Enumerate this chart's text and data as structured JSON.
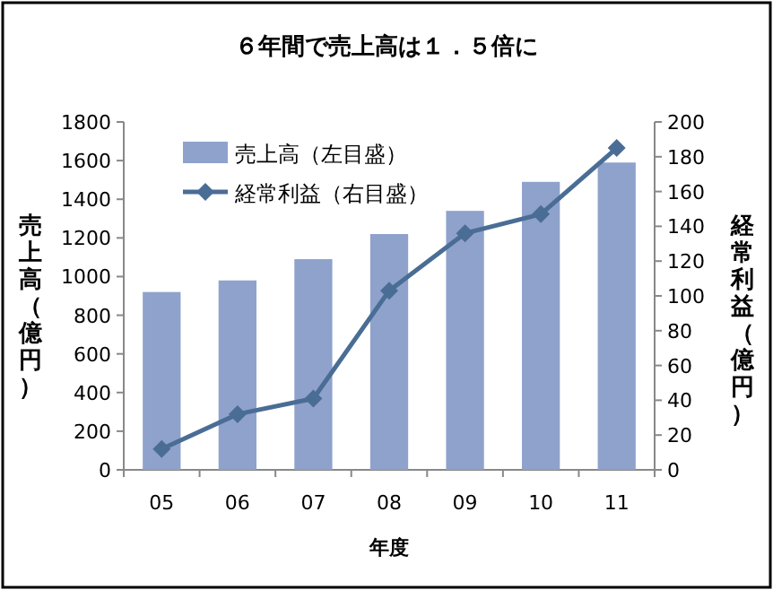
{
  "chart_data": {
    "type": "bar",
    "title": "６年間で売上高は１．５倍に",
    "xlabel": "年度",
    "ylabel": "売上高（億円）",
    "y2label": "経常利益（億円）",
    "categories": [
      "05",
      "06",
      "07",
      "08",
      "09",
      "10",
      "11"
    ],
    "series": [
      {
        "name": "売上高（左目盛）",
        "color": "#8ea2cc",
        "values": [
          920,
          980,
          1090,
          1220,
          1340,
          1490,
          1590
        ]
      },
      {
        "name": "経常利益（右目盛）",
        "type": "line",
        "axis": "y2",
        "color": "#4a6d95",
        "marker": "diamond",
        "values": [
          12,
          32,
          41,
          103,
          136,
          147,
          185
        ]
      }
    ],
    "ylim": [
      0,
      1800
    ],
    "yticks": [
      0,
      200,
      400,
      600,
      800,
      1000,
      1200,
      1400,
      1600,
      1800
    ],
    "y2lim": [
      0,
      200
    ],
    "y2ticks": [
      0,
      20,
      40,
      60,
      80,
      100,
      120,
      140,
      160,
      180,
      200
    ],
    "legend": "top left",
    "grid": false
  }
}
